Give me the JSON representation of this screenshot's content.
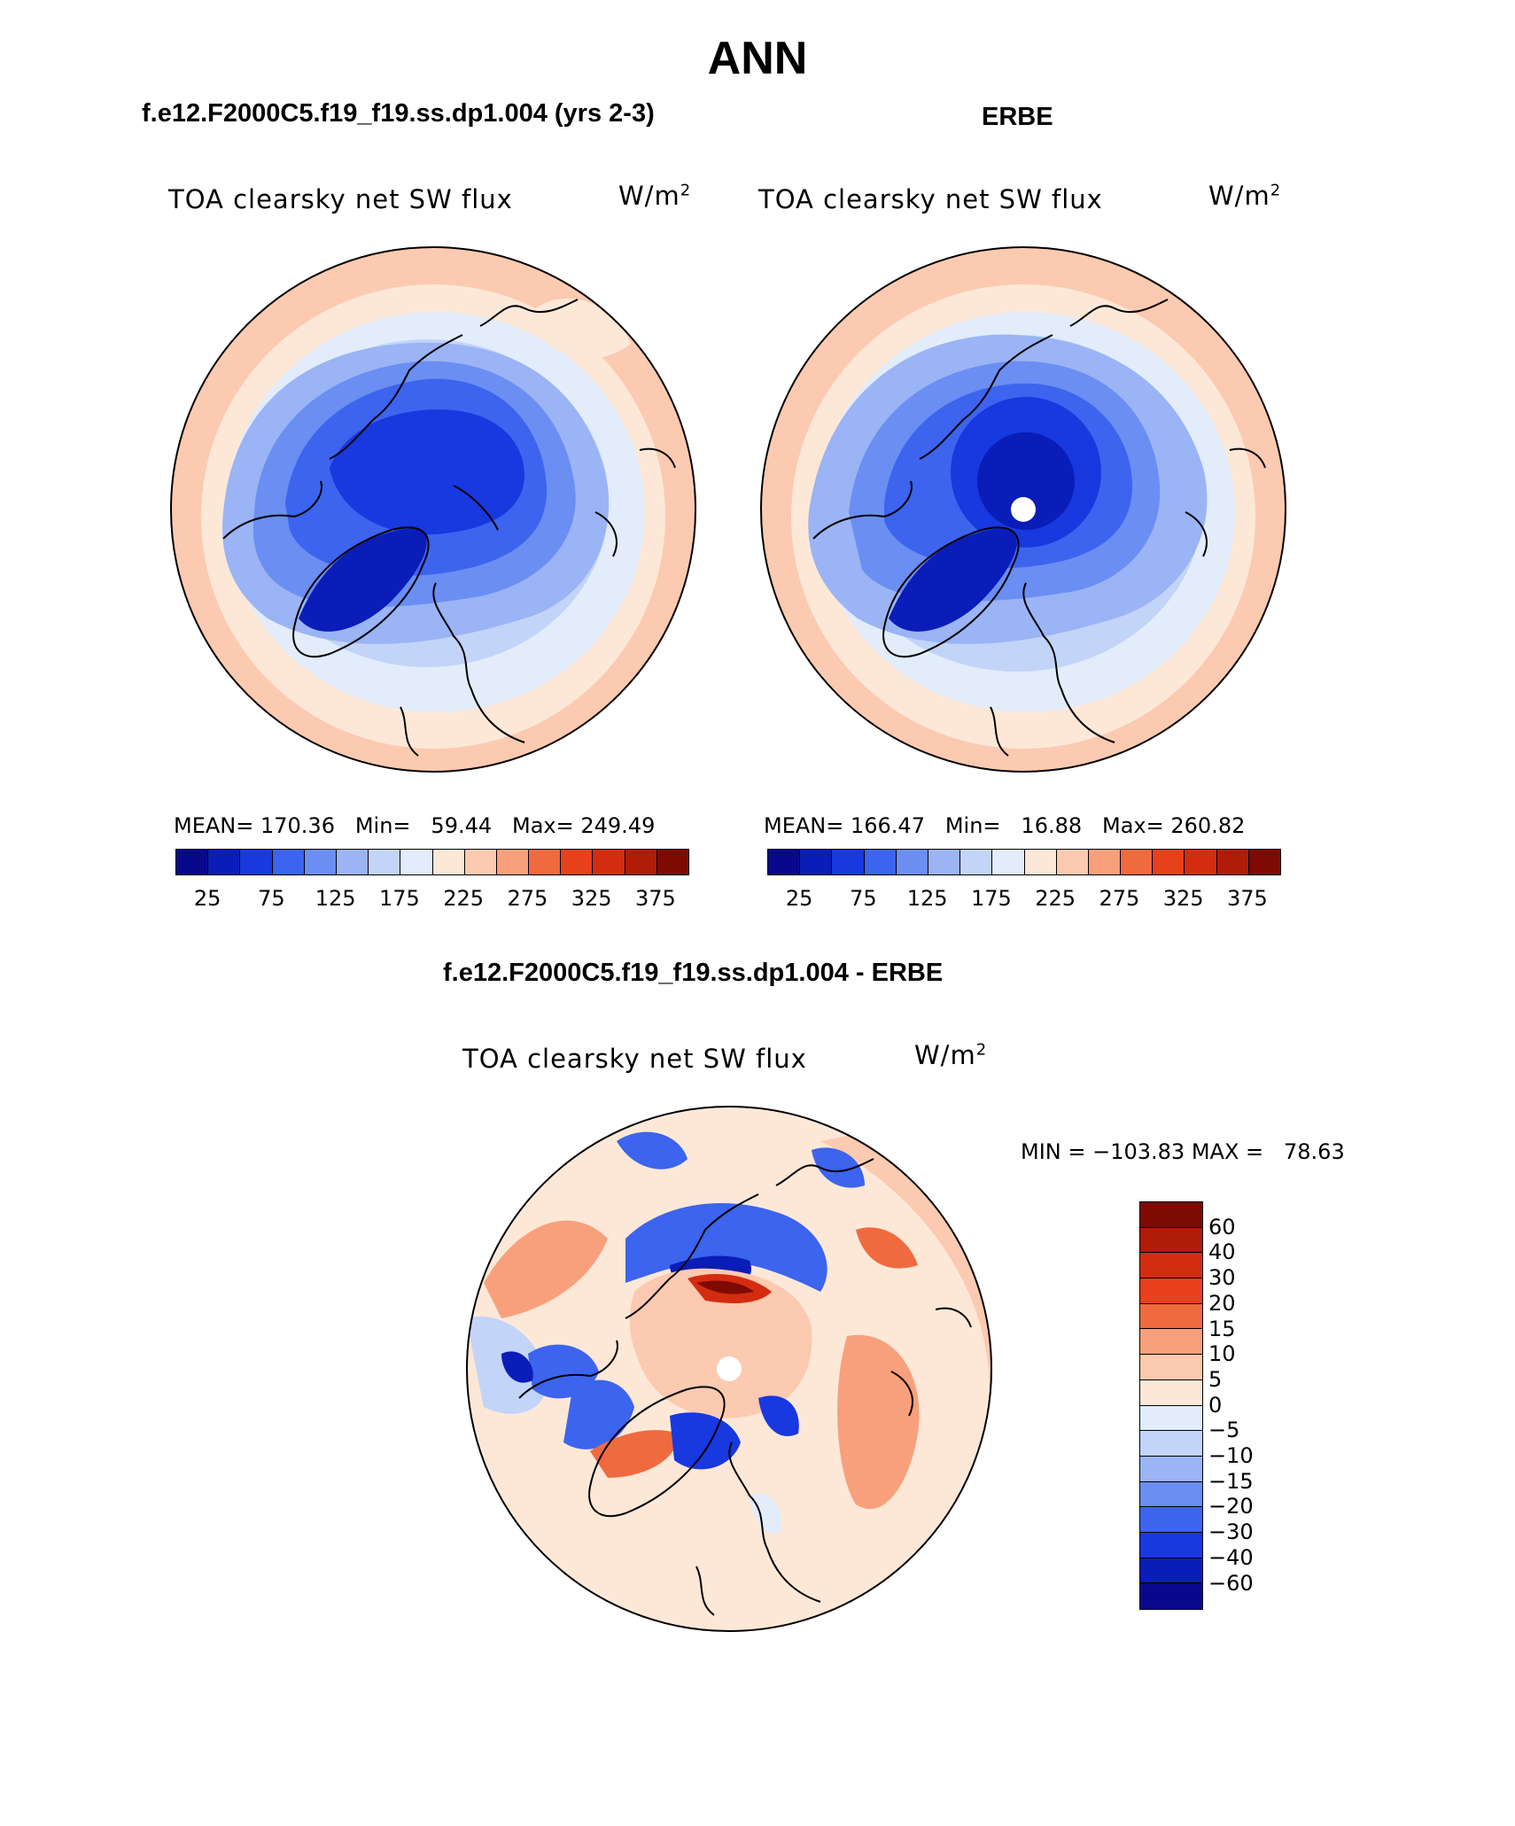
{
  "figure": {
    "title": "ANN",
    "diff_subtitle": "f.e12.F2000C5.f19_f19.ss.dp1.004 - ERBE"
  },
  "panels": [
    {
      "subtitle": "f.e12.F2000C5.f19_f19.ss.dp1.004 (yrs 2-3)",
      "variable": "TOA clearsky net SW flux",
      "units_base": "W/m",
      "units_exp": "2",
      "stats": "MEAN= 170.36   Min=   59.44   Max= 249.49"
    },
    {
      "subtitle": "ERBE",
      "variable": "TOA clearsky net SW flux",
      "units_base": "W/m",
      "units_exp": "2",
      "stats": "MEAN= 166.47   Min=   16.88   Max= 260.82"
    },
    {
      "variable": "TOA clearsky net SW flux",
      "units_base": "W/m",
      "units_exp": "2",
      "stats": "MIN = −103.83 MAX =   78.63"
    }
  ],
  "abs_colorbar": {
    "colors": [
      "#08088c",
      "#0a1db8",
      "#1838e0",
      "#3c64ee",
      "#6a8ef2",
      "#9ab4f5",
      "#c2d4f8",
      "#e2ecfb",
      "#fde8d8",
      "#fccab0",
      "#f8a07c",
      "#f06a40",
      "#e8401a",
      "#d42c10",
      "#b01c08",
      "#7e0a04"
    ],
    "labels": [
      "25",
      "75",
      "125",
      "175",
      "225",
      "275",
      "325",
      "375"
    ]
  },
  "diff_colorbar": {
    "colors": [
      "#7e0a04",
      "#b01c08",
      "#d42c10",
      "#e8401a",
      "#f06a40",
      "#f8a07c",
      "#fccab0",
      "#fde8d8",
      "#e2ecfb",
      "#c2d4f8",
      "#9ab4f5",
      "#6a8ef2",
      "#3c64ee",
      "#1838e0",
      "#0a1db8",
      "#08088c"
    ],
    "labels": [
      "60",
      "40",
      "30",
      "20",
      "15",
      "10",
      "5",
      "0",
      "−5",
      "−10",
      "−15",
      "−20",
      "−30",
      "−40",
      "−60"
    ]
  }
}
